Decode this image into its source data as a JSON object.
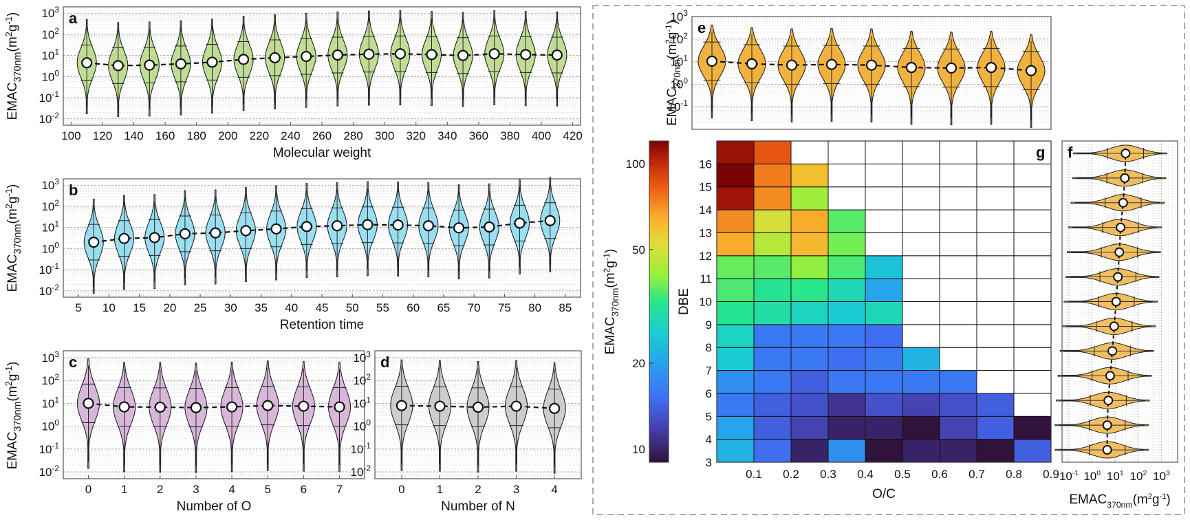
{
  "colors": {
    "violin_a": "#b8d98a",
    "violin_b": "#8fdaf0",
    "violin_c": "#d4b0d6",
    "violin_d": "#c8c8c8",
    "violin_e": "#f0aa2a",
    "violin_f": "#f0b850",
    "grid": "#bbbbbb",
    "frame": "#555555",
    "dash_border": "#aaaaaa"
  },
  "ylabel_main": "EMAC",
  "ylabel_sub": "370nm",
  "ylabel_unit_prefix": "(m",
  "ylabel_unit_exp1": "2",
  "ylabel_unit_mid": "g",
  "ylabel_unit_exp2": "-1",
  "ylabel_unit_suffix": ")",
  "log_base": "10",
  "log_exps": [
    "-2",
    "-1",
    "0",
    "1",
    "2",
    "3"
  ],
  "f_log_exps": [
    "-1",
    "0",
    "1",
    "2",
    "3"
  ],
  "chart_data": [
    {
      "id": "a",
      "type": "violin",
      "panel_label": "a",
      "xlabel": "Molecular weight",
      "yscale": "log",
      "ylim": [
        0.005,
        2000
      ],
      "x_ticks": [
        100,
        120,
        140,
        160,
        180,
        200,
        220,
        240,
        260,
        280,
        300,
        320,
        340,
        360,
        380,
        400,
        420
      ],
      "x": [
        110,
        130,
        150,
        170,
        190,
        210,
        230,
        250,
        270,
        290,
        310,
        330,
        350,
        370,
        390,
        410
      ],
      "medians": [
        4.5,
        3.3,
        3.5,
        4.0,
        4.8,
        6.5,
        7.8,
        9.0,
        10.5,
        11.5,
        12.0,
        11.0,
        10.0,
        12.0,
        11.0,
        10.5
      ]
    },
    {
      "id": "b",
      "type": "violin",
      "panel_label": "b",
      "xlabel": "Retention time",
      "yscale": "log",
      "ylim": [
        0.005,
        2000
      ],
      "x_ticks": [
        5,
        10,
        15,
        20,
        25,
        30,
        35,
        40,
        45,
        50,
        55,
        60,
        65,
        70,
        75,
        80,
        85
      ],
      "x": [
        7.5,
        12.5,
        17.5,
        22.5,
        27.5,
        32.5,
        37.5,
        42.5,
        47.5,
        52.5,
        57.5,
        62.5,
        67.5,
        72.5,
        77.5,
        82.5
      ],
      "medians": [
        2.0,
        3.0,
        3.3,
        5.0,
        5.5,
        7.0,
        8.5,
        11.0,
        12.0,
        13.5,
        13.0,
        12.0,
        9.5,
        10.5,
        16.0,
        21.0
      ]
    },
    {
      "id": "c",
      "type": "violin",
      "panel_label": "c",
      "xlabel": "Number of O",
      "yscale": "log",
      "ylim": [
        0.005,
        2000
      ],
      "x_ticks": [
        0,
        1,
        2,
        3,
        4,
        5,
        6,
        7
      ],
      "x": [
        0,
        1,
        2,
        3,
        4,
        5,
        6,
        7
      ],
      "medians": [
        10.0,
        7.0,
        6.8,
        6.5,
        7.0,
        8.0,
        7.5,
        7.0
      ]
    },
    {
      "id": "d",
      "type": "violin",
      "panel_label": "d",
      "xlabel": "Number of N",
      "yscale": "log",
      "ylim": [
        0.005,
        2000
      ],
      "x_ticks": [
        0,
        1,
        2,
        3,
        4
      ],
      "x": [
        0,
        1,
        2,
        3,
        4
      ],
      "medians": [
        8.0,
        7.5,
        6.8,
        7.5,
        6.0
      ]
    },
    {
      "id": "e",
      "type": "violin",
      "panel_label": "e",
      "xlabel": "",
      "yscale": "log",
      "ylim": [
        0.01,
        1000
      ],
      "x": [
        0.05,
        0.15,
        0.25,
        0.35,
        0.45,
        0.55,
        0.65,
        0.75,
        0.85
      ],
      "medians": [
        10.5,
        8.0,
        7.0,
        7.5,
        7.0,
        5.5,
        5.2,
        5.5,
        4.0
      ]
    },
    {
      "id": "f",
      "type": "violin-horizontal",
      "panel_label": "f",
      "xlabel": "EMAC370nm(m2g-1)",
      "xscale": "log",
      "xlim": [
        0.05,
        5000
      ],
      "y": [
        3.5,
        4.5,
        5.5,
        6.5,
        7.5,
        8.5,
        9.5,
        10.5,
        11.5,
        12.5,
        13.5,
        14.5,
        15.5
      ],
      "medians": [
        4.5,
        4.5,
        5.0,
        6.0,
        7.5,
        9.0,
        11.0,
        13.0,
        15.0,
        17.0,
        22.0,
        26.0,
        28.0
      ]
    },
    {
      "id": "g",
      "type": "heatmap",
      "panel_label": "g",
      "xlabel": "O/C",
      "ylabel": "DBE",
      "x_ticks": [
        "0.1",
        "0.2",
        "0.3",
        "0.4",
        "0.5",
        "0.6",
        "0.7",
        "0.8",
        "0.9"
      ],
      "y_ticks": [
        "3",
        "4",
        "5",
        "6",
        "7",
        "8",
        "9",
        "10",
        "11",
        "12",
        "13",
        "14",
        "15",
        "16"
      ],
      "colorbar_label": "EMAC370nm(m2g-1)",
      "colorbar_ticks": [
        "10",
        "20",
        "50",
        "100"
      ],
      "colorbar_range": [
        9,
        120
      ],
      "rows_from_dbe3": [
        [
          22,
          15,
          10,
          18,
          9,
          10,
          10,
          9,
          14
        ],
        [
          20,
          14,
          12,
          10,
          10,
          9,
          12,
          14,
          9
        ],
        [
          16,
          14,
          13,
          11,
          13,
          12,
          13,
          14,
          null
        ],
        [
          18,
          16,
          14,
          16,
          16,
          16,
          16,
          null,
          null
        ],
        [
          25,
          16,
          16,
          15,
          16,
          22,
          null,
          null,
          null
        ],
        [
          27,
          16,
          16,
          16,
          15,
          null,
          null,
          null,
          null
        ],
        [
          32,
          30,
          27,
          25,
          28,
          null,
          null,
          null,
          null
        ],
        [
          35,
          32,
          33,
          28,
          20,
          null,
          null,
          null,
          null
        ],
        [
          37,
          36,
          40,
          35,
          24,
          null,
          null,
          null,
          null
        ],
        [
          65,
          45,
          62,
          38,
          null,
          null,
          null,
          null,
          null
        ],
        [
          72,
          50,
          65,
          36,
          null,
          null,
          null,
          null,
          null
        ],
        [
          110,
          72,
          42,
          null,
          null,
          null,
          null,
          null,
          null
        ],
        [
          120,
          75,
          60,
          null,
          null,
          null,
          null,
          null,
          null
        ],
        [
          112,
          85,
          null,
          null,
          null,
          null,
          null,
          null,
          null
        ]
      ]
    }
  ]
}
